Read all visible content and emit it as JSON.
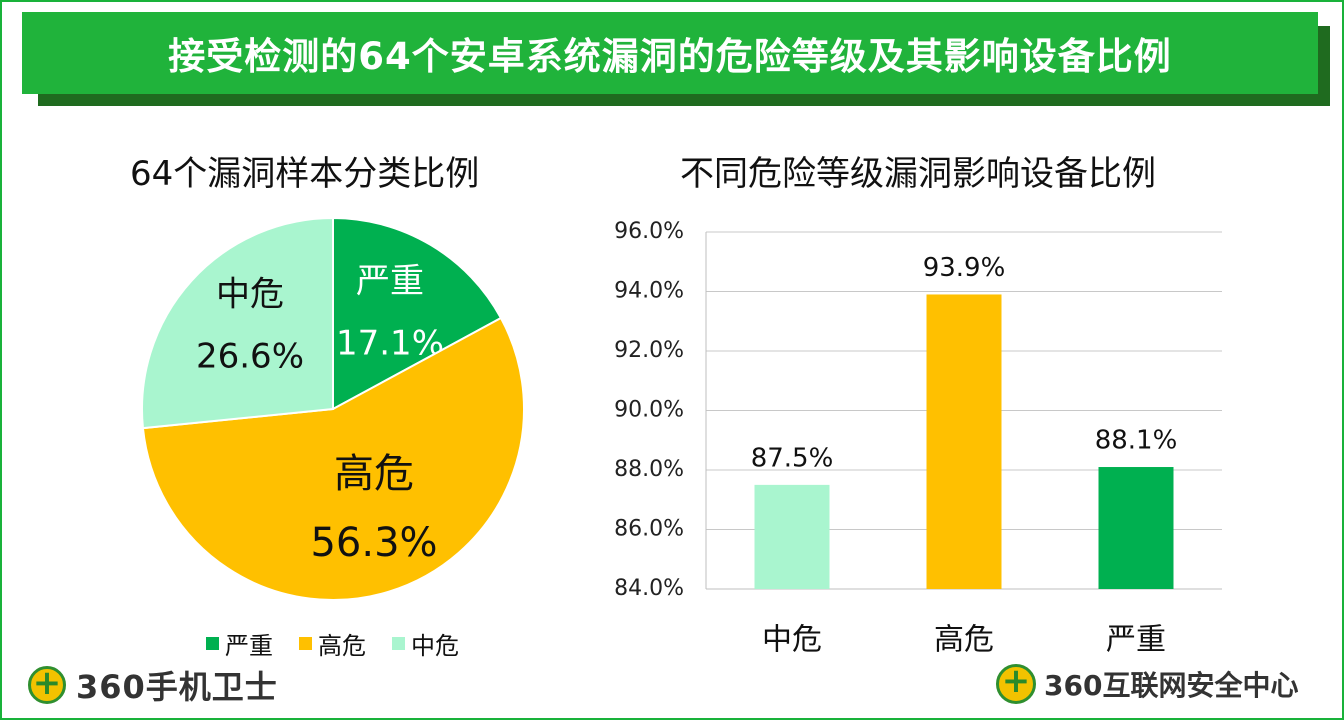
{
  "title": "接受检测的64个安卓系统漏洞的危险等级及其影响设备比例",
  "colors": {
    "severe": "#00b050",
    "high": "#ffc000",
    "medium": "#a9f5cf",
    "accent": "#20b33b"
  },
  "chart_data": [
    {
      "type": "pie",
      "title": "64个漏洞样本分类比例",
      "slices": [
        {
          "label": "严重",
          "value": 17.1,
          "display": "17.1%",
          "color": "#00b050"
        },
        {
          "label": "高危",
          "value": 56.3,
          "display": "56.3%",
          "color": "#ffc000"
        },
        {
          "label": "中危",
          "value": 26.6,
          "display": "26.6%",
          "color": "#a9f5cf"
        }
      ],
      "legend": [
        "严重",
        "高危",
        "中危"
      ],
      "legend_position": "bottom"
    },
    {
      "type": "bar",
      "title": "不同危险等级漏洞影响设备比例",
      "categories": [
        "中危",
        "高危",
        "严重"
      ],
      "values": [
        87.5,
        93.9,
        88.1
      ],
      "labels": [
        "87.5%",
        "93.9%",
        "88.1%"
      ],
      "colors": [
        "#a9f5cf",
        "#ffc000",
        "#00b050"
      ],
      "ylim": [
        84.0,
        96.0
      ],
      "yticks": [
        "84.0%",
        "86.0%",
        "88.0%",
        "90.0%",
        "92.0%",
        "94.0%",
        "96.0%"
      ],
      "ytick_values": [
        84,
        86,
        88,
        90,
        92,
        94,
        96
      ],
      "grid": true
    }
  ],
  "logos": {
    "left": "360手机卫士",
    "right": "360互联网安全中心"
  }
}
